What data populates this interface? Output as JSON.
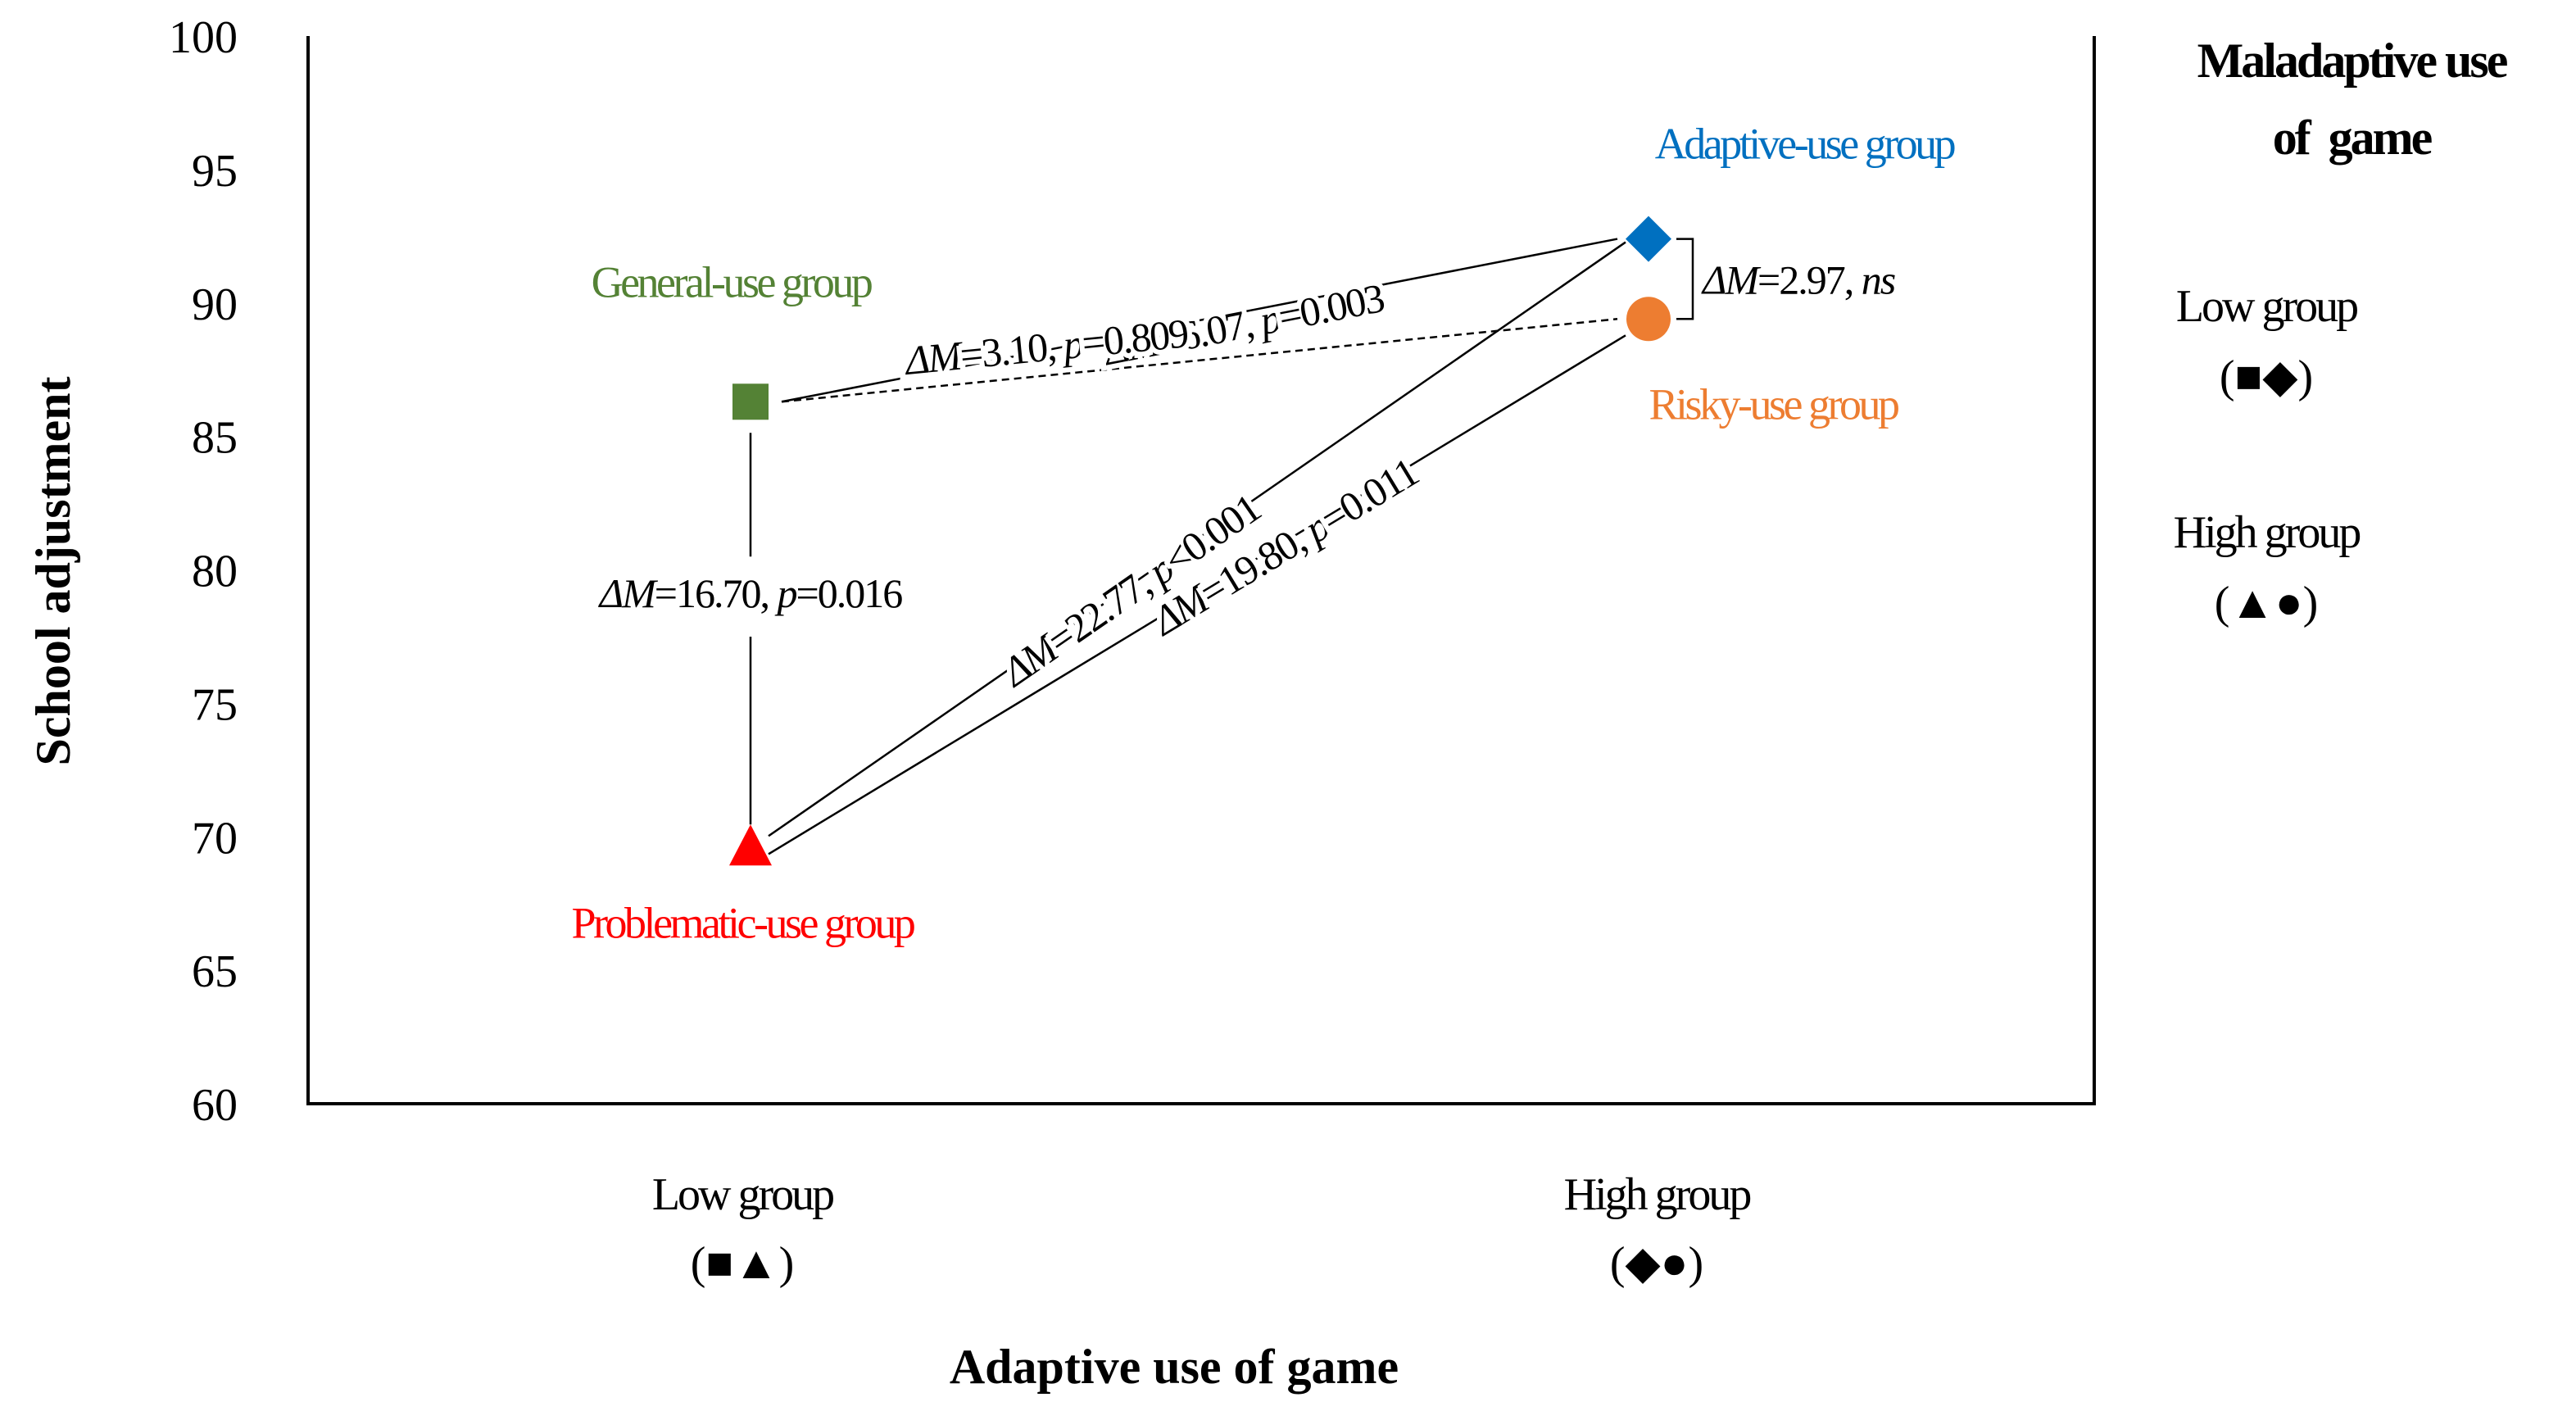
{
  "chart_data": {
    "type": "scatter",
    "ylabel": "School adjustment",
    "xlabel": "Adaptive use of game",
    "ylim": [
      60,
      100
    ],
    "yticks": [
      60,
      65,
      70,
      75,
      80,
      85,
      90,
      95,
      100
    ],
    "ytick_labels": [
      "60",
      "65",
      "70",
      "75",
      "80",
      "85",
      "90",
      "95",
      "100"
    ],
    "categories": [
      "Low group",
      "High group"
    ],
    "category_symbols": [
      "(■▲)",
      "(◆●)"
    ],
    "legend": {
      "title": "Maladaptive use of game",
      "title_line1": "Maladaptive use",
      "title_line2": "of  game",
      "entries": [
        {
          "label": "Low group",
          "symbols": "(■◆)"
        },
        {
          "label": "High group",
          "symbols": "(▲●)"
        }
      ]
    },
    "series": [
      {
        "name": "General-use group",
        "x": "Low group",
        "y": 86.3,
        "marker": "square",
        "color": "#548235"
      },
      {
        "name": "Problematic-use group",
        "x": "Low group",
        "y": 69.6,
        "marker": "triangle",
        "color": "#FF0000"
      },
      {
        "name": "Adaptive-use group",
        "x": "High group",
        "y": 92.4,
        "marker": "diamond",
        "color": "#0070C0"
      },
      {
        "name": "Risky-use group",
        "x": "High group",
        "y": 89.4,
        "marker": "circle",
        "color": "#ED7D31"
      }
    ],
    "comparisons": [
      {
        "from": "General-use group",
        "to": "Adaptive-use group",
        "dM": "6.07",
        "p": "0.003",
        "style": "solid"
      },
      {
        "from": "General-use group",
        "to": "Risky-use group",
        "dM": "3.10",
        "p": "0.809",
        "style": "dashed"
      },
      {
        "from": "General-use group",
        "to": "Problematic-use group",
        "dM": "16.70",
        "p": "0.016",
        "style": "solid"
      },
      {
        "from": "Problematic-use group",
        "to": "Adaptive-use group",
        "dM": "22.77",
        "p": "<0.001",
        "style": "solid"
      },
      {
        "from": "Problematic-use group",
        "to": "Risky-use group",
        "dM": "19.80",
        "p": "0.011",
        "style": "solid"
      },
      {
        "from": "Adaptive-use group",
        "to": "Risky-use group",
        "dM": "2.97",
        "p": "ns",
        "style": "bracket"
      }
    ]
  }
}
